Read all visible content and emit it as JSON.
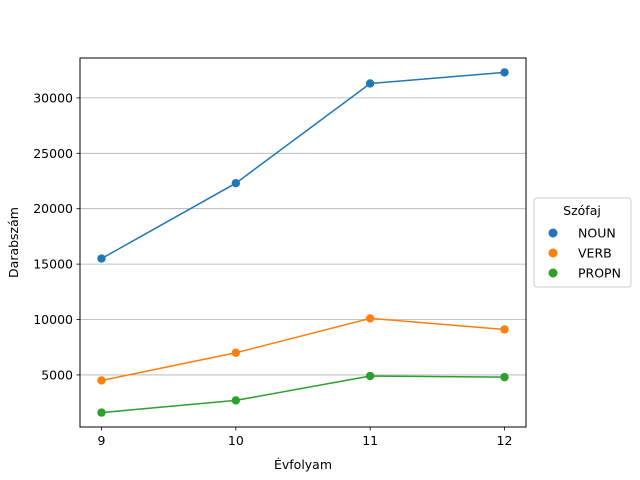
{
  "chart_data": {
    "type": "line",
    "title": "",
    "xlabel": "Évfolyam",
    "ylabel": "Darabszám",
    "x": [
      9,
      10,
      11,
      12
    ],
    "x_tick_labels": [
      "9",
      "10",
      "11",
      "12"
    ],
    "xlim": [
      8.84,
      12.16
    ],
    "ylim": [
      300,
      33600
    ],
    "y_ticks": [
      5000,
      10000,
      15000,
      20000,
      25000,
      30000
    ],
    "y_tick_labels": [
      "5000",
      "10000",
      "15000",
      "20000",
      "25000",
      "30000"
    ],
    "grid": "horizontal",
    "legend": {
      "title": "Szófaj",
      "placement": "outside-right"
    },
    "series": [
      {
        "name": "NOUN",
        "color": "#1f77b4",
        "values": [
          15500,
          22300,
          31300,
          32300
        ]
      },
      {
        "name": "VERB",
        "color": "#ff7f0e",
        "values": [
          4500,
          7000,
          10100,
          9100
        ]
      },
      {
        "name": "PROPN",
        "color": "#2ca02c",
        "values": [
          1600,
          2700,
          4900,
          4800
        ]
      }
    ]
  }
}
